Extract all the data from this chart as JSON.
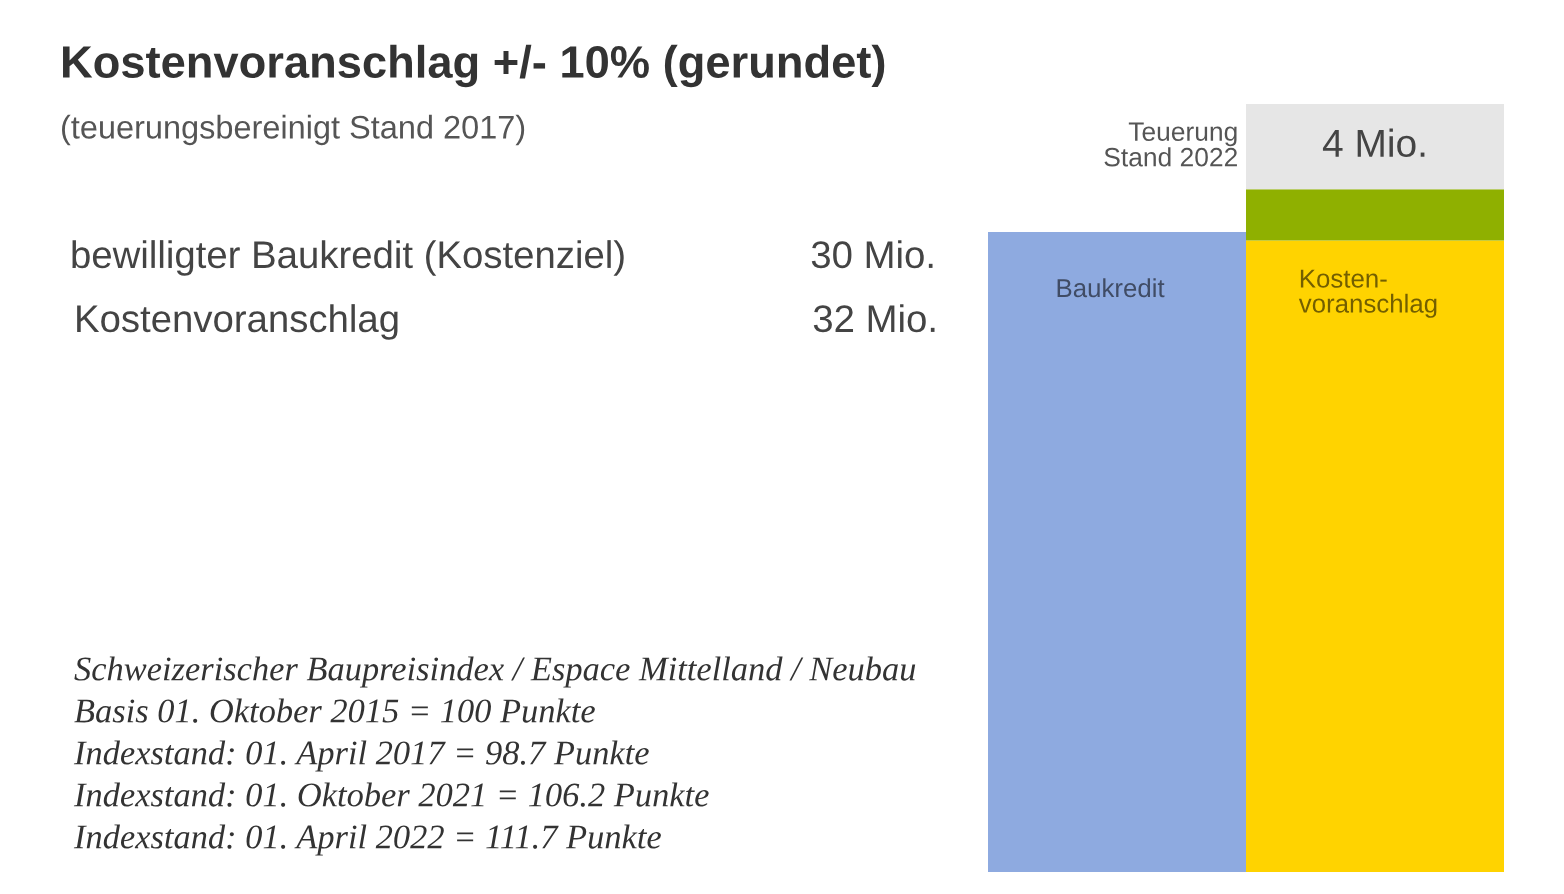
{
  "chart_data": {
    "type": "bar",
    "title": "Kostenvoranschlag +/- 10% (gerundet)",
    "subtitle": "(teuerungsbereinigt Stand 2017)",
    "categories": [
      "Baukredit",
      "Kosten-\nvoranschlag"
    ],
    "stacked": true,
    "tick_labels": "x",
    "series": [
      {
        "colors": [
          "#8eaae0",
          "#ffd300"
        ],
        "values": [
          30,
          29.6
        ]
      },
      {
        "color": "#8fb000",
        "values": [
          null,
          2.4
        ]
      },
      {
        "name": "Teuerung\nStand 2022",
        "color": "#e6e6e6",
        "values": [
          null,
          4
        ],
        "value_labels": [
          null,
          "4 Mio."
        ]
      }
    ],
    "annotations": [
      "bewilligter Baukredit (Kostenziel)",
      "30 Mio.",
      "Kostenvoranschlag",
      "32 Mio.",
      "Schweizerischer Baupreisindex / Espace Mittelland / Neubau",
      "Basis 01. Oktober 2015 = 100 Punkte",
      "Indexstand: 01. April 2017 = 98.7 Punkte",
      "Indexstand: 01. Oktober 2021 = 106.2 Punkte",
      "Indexstand: 01. April 2022 = 111.7 Punkte"
    ]
  }
}
